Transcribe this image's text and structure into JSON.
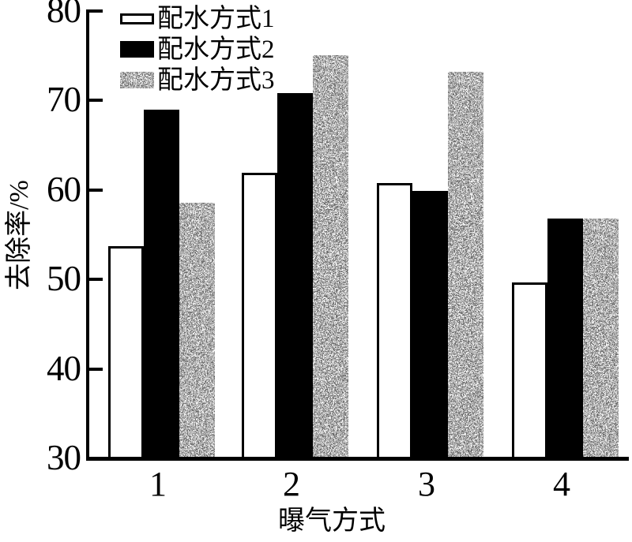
{
  "chart_data": {
    "type": "bar",
    "title": "",
    "categories": [
      "1",
      "2",
      "3",
      "4"
    ],
    "series": [
      {
        "name": "配水方式1",
        "fill": "white",
        "values": [
          53.7,
          61.9,
          60.8,
          49.7
        ]
      },
      {
        "name": "配水方式2",
        "fill": "black",
        "values": [
          69.0,
          70.8,
          59.9,
          56.8
        ]
      },
      {
        "name": "配水方式3",
        "fill": "speckle",
        "values": [
          58.6,
          75.1,
          73.2,
          56.8
        ]
      }
    ],
    "xlabel": "曝气方式",
    "ylabel": "去除率/%",
    "ylim": [
      30,
      80
    ],
    "yticks": [
      30,
      40,
      50,
      60,
      70,
      80
    ],
    "legend_position": "top-left",
    "grid": false,
    "bar_group_gap_note": "three adjacent bars per group, gap between groups"
  },
  "colors": {
    "ink": "#000000",
    "background": "#ffffff",
    "speckle_mid_gray": "#8a8a8a"
  }
}
